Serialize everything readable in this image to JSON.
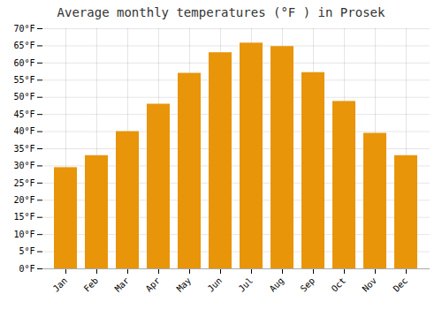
{
  "chart_data": {
    "type": "bar",
    "title": "Average monthly temperatures (°F ) in Prosek",
    "categories": [
      "Jan",
      "Feb",
      "Mar",
      "Apr",
      "May",
      "Jun",
      "Jul",
      "Aug",
      "Sep",
      "Oct",
      "Nov",
      "Dec"
    ],
    "values": [
      29.5,
      33.0,
      40.0,
      48.0,
      57.0,
      63.0,
      65.8,
      64.8,
      57.2,
      48.8,
      39.5,
      33.0
    ],
    "color": "#E8950A",
    "ylim": [
      0,
      70
    ],
    "yticks": [
      {
        "value": 0,
        "label": "0°F"
      },
      {
        "value": 5,
        "label": "5°F"
      },
      {
        "value": 10,
        "label": "10°F"
      },
      {
        "value": 15,
        "label": "15°F"
      },
      {
        "value": 20,
        "label": "20°F"
      },
      {
        "value": 25,
        "label": "25°F"
      },
      {
        "value": 30,
        "label": "30°F"
      },
      {
        "value": 35,
        "label": "35°F"
      },
      {
        "value": 40,
        "label": "40°F"
      },
      {
        "value": 45,
        "label": "45°F"
      },
      {
        "value": 50,
        "label": "50°F"
      },
      {
        "value": 55,
        "label": "55°F"
      },
      {
        "value": 60,
        "label": "60°F"
      },
      {
        "value": 65,
        "label": "65°F"
      },
      {
        "value": 70,
        "label": "70°F"
      }
    ],
    "grid": true
  }
}
